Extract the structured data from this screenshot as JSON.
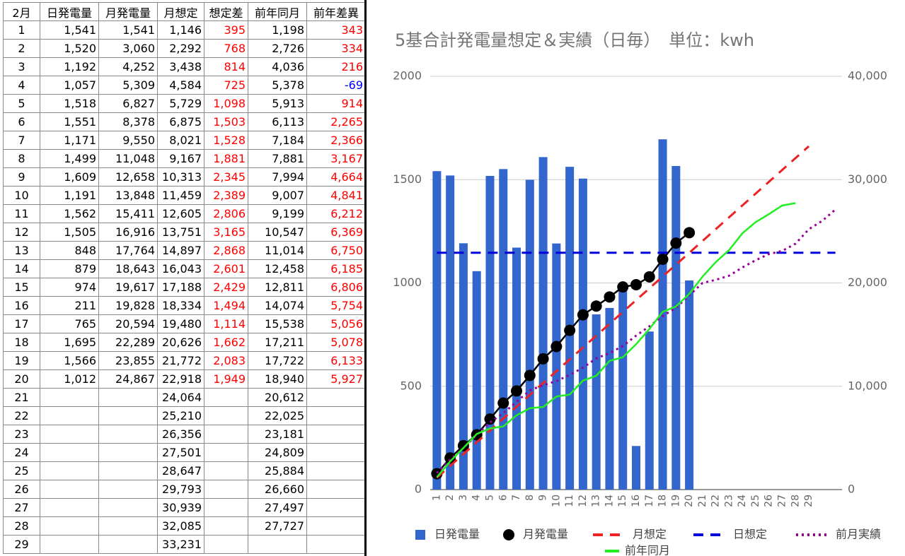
{
  "table": {
    "headers": [
      "2月",
      "日発電量",
      "月発電量",
      "月想定",
      "想定差",
      "前年同月",
      "前年差異"
    ],
    "rows": [
      [
        "1",
        "1,541",
        "1,541",
        "1,146",
        "395",
        "1,198",
        "343"
      ],
      [
        "2",
        "1,520",
        "3,060",
        "2,292",
        "768",
        "2,726",
        "334"
      ],
      [
        "3",
        "1,192",
        "4,252",
        "3,438",
        "814",
        "4,036",
        "216"
      ],
      [
        "4",
        "1,057",
        "5,309",
        "4,584",
        "725",
        "5,378",
        "-69"
      ],
      [
        "5",
        "1,518",
        "6,827",
        "5,729",
        "1,098",
        "5,913",
        "914"
      ],
      [
        "6",
        "1,551",
        "8,378",
        "6,875",
        "1,503",
        "6,113",
        "2,265"
      ],
      [
        "7",
        "1,171",
        "9,550",
        "8,021",
        "1,528",
        "7,184",
        "2,366"
      ],
      [
        "8",
        "1,499",
        "11,048",
        "9,167",
        "1,881",
        "7,881",
        "3,167"
      ],
      [
        "9",
        "1,609",
        "12,658",
        "10,313",
        "2,345",
        "7,994",
        "4,664"
      ],
      [
        "10",
        "1,191",
        "13,848",
        "11,459",
        "2,389",
        "9,007",
        "4,841"
      ],
      [
        "11",
        "1,562",
        "15,411",
        "12,605",
        "2,806",
        "9,199",
        "6,212"
      ],
      [
        "12",
        "1,505",
        "16,916",
        "13,751",
        "3,165",
        "10,547",
        "6,369"
      ],
      [
        "13",
        "848",
        "17,764",
        "14,897",
        "2,868",
        "11,014",
        "6,750"
      ],
      [
        "14",
        "879",
        "18,643",
        "16,043",
        "2,601",
        "12,458",
        "6,185"
      ],
      [
        "15",
        "974",
        "19,617",
        "17,188",
        "2,429",
        "12,811",
        "6,806"
      ],
      [
        "16",
        "211",
        "19,828",
        "18,334",
        "1,494",
        "14,074",
        "5,754"
      ],
      [
        "17",
        "765",
        "20,594",
        "19,480",
        "1,114",
        "15,538",
        "5,056"
      ],
      [
        "18",
        "1,695",
        "22,289",
        "20,626",
        "1,662",
        "17,211",
        "5,078"
      ],
      [
        "19",
        "1,566",
        "23,855",
        "21,772",
        "2,083",
        "17,722",
        "6,133"
      ],
      [
        "20",
        "1,012",
        "24,867",
        "22,918",
        "1,949",
        "18,940",
        "5,927"
      ],
      [
        "21",
        null,
        null,
        "24,064",
        null,
        "20,612",
        null
      ],
      [
        "22",
        null,
        null,
        "25,210",
        null,
        "22,025",
        null
      ],
      [
        "23",
        null,
        null,
        "26,356",
        null,
        "23,181",
        null
      ],
      [
        "24",
        null,
        null,
        "27,501",
        null,
        "24,809",
        null
      ],
      [
        "25",
        null,
        null,
        "28,647",
        null,
        "25,884",
        null
      ],
      [
        "26",
        null,
        null,
        "29,793",
        null,
        "26,660",
        null
      ],
      [
        "27",
        null,
        null,
        "30,939",
        null,
        "27,497",
        null
      ],
      [
        "28",
        null,
        null,
        "32,085",
        null,
        "27,727",
        null
      ],
      [
        "29",
        null,
        null,
        "33,231",
        null,
        null,
        null
      ]
    ]
  },
  "chart_data": {
    "type": "combo",
    "title": "5基合計発電量想定＆実績（日毎）　単位：kwh",
    "categories": [
      "1",
      "2",
      "3",
      "4",
      "5",
      "6",
      "7",
      "8",
      "9",
      "10",
      "11",
      "12",
      "13",
      "14",
      "15",
      "16",
      "17",
      "18",
      "19",
      "20",
      "21",
      "22",
      "23",
      "24",
      "25",
      "26",
      "27",
      "28",
      "29",
      null,
      null
    ],
    "ylim": [
      0,
      2000
    ],
    "yticks": [
      0,
      500,
      1000,
      1500,
      2000
    ],
    "y2lim": [
      0,
      40000
    ],
    "y2ticks": [
      0,
      {
        "value": 10000,
        "label": "10,000"
      },
      {
        "value": 20000,
        "label": "20,000"
      },
      {
        "value": 30000,
        "label": "30,000"
      },
      {
        "value": 40000,
        "label": "40,000"
      }
    ],
    "grid": true,
    "series": [
      {
        "name": "日発電量",
        "type": "bar",
        "color": "#3366cc",
        "values": [
          1541,
          1520,
          1192,
          1057,
          1518,
          1551,
          1171,
          1499,
          1609,
          1191,
          1562,
          1505,
          848,
          879,
          974,
          211,
          765,
          1695,
          1566,
          1012,
          null,
          null,
          null,
          null,
          null,
          null,
          null,
          null,
          null,
          null,
          null
        ]
      },
      {
        "name": "月発電量",
        "type": "line",
        "line_style": "solid",
        "marker": "circle",
        "color": "#000000",
        "axis": "y2",
        "values": [
          1541,
          3060,
          4252,
          5309,
          6827,
          8378,
          9550,
          11048,
          12658,
          13848,
          15411,
          16916,
          17764,
          18643,
          19617,
          19828,
          20594,
          22289,
          23855,
          24867,
          null,
          null,
          null,
          null,
          null,
          null,
          null,
          null,
          null,
          null,
          null
        ]
      },
      {
        "name": "月想定",
        "type": "line",
        "line_style": "dashed",
        "color": "#ee2222",
        "axis": "y2",
        "values": [
          1146,
          2292,
          3438,
          4584,
          5729,
          6875,
          8021,
          9167,
          10313,
          11459,
          12605,
          13751,
          14897,
          16043,
          17188,
          18334,
          19480,
          20626,
          21772,
          22918,
          24064,
          25210,
          26356,
          27501,
          28647,
          29793,
          30939,
          32085,
          33231,
          null,
          null
        ]
      },
      {
        "name": "日想定",
        "type": "line",
        "line_style": "dashed",
        "color": "#0000dd",
        "values": [
          1146,
          1146,
          1146,
          1146,
          1146,
          1146,
          1146,
          1146,
          1146,
          1146,
          1146,
          1146,
          1146,
          1146,
          1146,
          1146,
          1146,
          1146,
          1146,
          1146,
          1146,
          1146,
          1146,
          1146,
          1146,
          1146,
          1146,
          1146,
          1146,
          1146,
          1146
        ]
      },
      {
        "name": "前月実績",
        "type": "line",
        "line_style": "dotted",
        "color": "#990099",
        "axis": "y2",
        "values": [
          1600,
          2900,
          4000,
          5300,
          6500,
          7400,
          8500,
          9600,
          10100,
          10500,
          11100,
          11800,
          12700,
          13200,
          13900,
          14900,
          15800,
          16800,
          17600,
          18800,
          20000,
          20300,
          20700,
          21500,
          22200,
          22800,
          23100,
          23800,
          25200,
          26000,
          27100
        ]
      },
      {
        "name": "前年同月",
        "type": "line",
        "line_style": "solid",
        "color": "#22ee22",
        "axis": "y2",
        "values": [
          1198,
          2726,
          4036,
          5378,
          5913,
          6113,
          7184,
          7881,
          7994,
          9007,
          9199,
          10547,
          11014,
          12458,
          12811,
          14074,
          15538,
          17211,
          17722,
          18940,
          20612,
          22025,
          23181,
          24809,
          25884,
          26660,
          27497,
          27727,
          null,
          null,
          null
        ]
      }
    ]
  }
}
